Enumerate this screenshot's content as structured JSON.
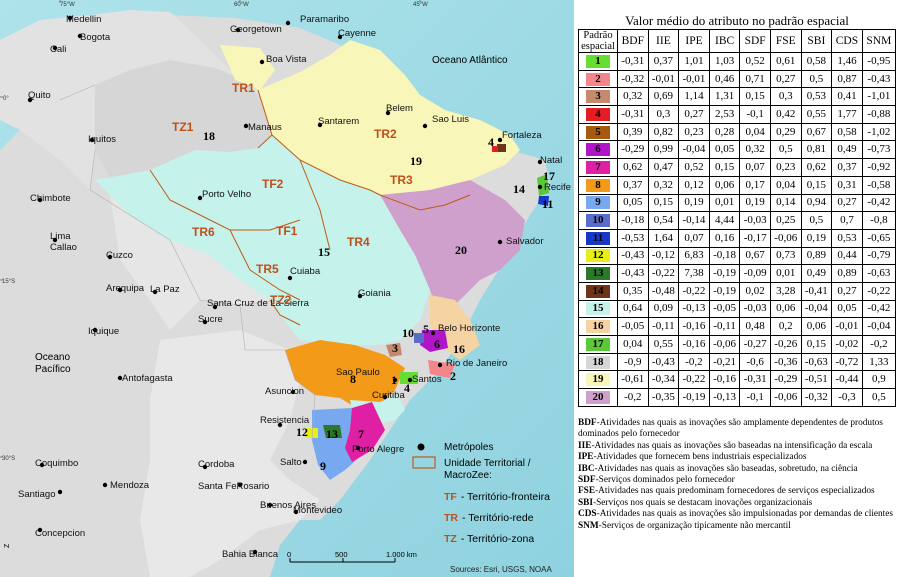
{
  "map": {
    "graticule": {
      "top": [
        "75°W",
        "60°W",
        "45°W"
      ],
      "left": [
        "0°",
        "15°S",
        "30°S"
      ]
    },
    "country_labels": [
      "Oceano Atlântico",
      "Oceano\nPacífico"
    ],
    "cities": [
      "Medellin",
      "Bogota",
      "Cali",
      "Georgetown",
      "Paramaribo",
      "Cayenne",
      "Boa Vista",
      "Quito",
      "Manaus",
      "Iquitos",
      "Santarem",
      "Belem",
      "Sao Luis",
      "Fortaleza",
      "Natal",
      "Recife",
      "Chimbote",
      "Porto Velho",
      "Lima\nCallao",
      "Cuzco",
      "Salvador",
      "Cuiaba",
      "Goiania",
      "Arequipa",
      "La Paz",
      "Santa Cruz de La Sierra",
      "Sucre",
      "Belo Horizonte",
      "Iquique",
      "Rio de Janeiro",
      "Sao Paulo",
      "Santos",
      "Curitiba",
      "Antofagasta",
      "Asuncion",
      "Resistencia",
      "Porto Alegre",
      "Salto",
      "Coquimbo",
      "Cordoba",
      "Mendoza",
      "Santa FeRosario",
      "Santiago",
      "Buenos Aires",
      "Montevideo",
      "Concepcion",
      "Bahia Blanca"
    ],
    "territory_labels": [
      "TR1",
      "TZ1",
      "TR2",
      "TF2",
      "TR3",
      "TR6",
      "TF1",
      "TR4",
      "TR5",
      "TZ2"
    ],
    "pattern_labels": [
      "18",
      "19",
      "4",
      "17",
      "14",
      "11",
      "15",
      "20",
      "10",
      "5",
      "6",
      "16",
      "3",
      "2",
      "8",
      "4",
      "12",
      "13",
      "7",
      "9",
      "1"
    ],
    "legend": {
      "metro_label": "Metrópoles",
      "unit_label": "Unidade Territorial /\nMacroZee:",
      "tf_code": "TF",
      "tf_text": "- Território-fronteira",
      "tr_code": "TR",
      "tr_text": "- Território-rede",
      "tz_code": "TZ",
      "tz_text": "- Território-zona"
    },
    "scalebar": {
      "ticks": [
        "0",
        "500",
        "1.000 km"
      ]
    },
    "north_label": "Z",
    "source": "Sources: Esri, USGS, NOAA"
  },
  "table": {
    "title": "Valor médio do atributo no padrão espacial",
    "pattern_header": "Padrão\nespacial",
    "columns": [
      "BDF",
      "IIE",
      "IPE",
      "IBC",
      "SDF",
      "FSE",
      "SBI",
      "CDS",
      "SNM"
    ],
    "rows": [
      {
        "id": "1",
        "color": "#66dd33",
        "values": [
          "-0,31",
          "0,37",
          "1,01",
          "1,03",
          "0,52",
          "0,61",
          "0,58",
          "1,46",
          "-0,95"
        ]
      },
      {
        "id": "2",
        "color": "#f2868a",
        "values": [
          "-0,32",
          "-0,01",
          "-0,01",
          "0,46",
          "0,71",
          "0,27",
          "0,5",
          "0,87",
          "-0,43"
        ]
      },
      {
        "id": "3",
        "color": "#c58a6e",
        "values": [
          "0,32",
          "0,69",
          "1,14",
          "1,31",
          "0,15",
          "0,3",
          "0,53",
          "0,41",
          "-1,01"
        ]
      },
      {
        "id": "4",
        "color": "#e61c24",
        "values": [
          "-0,31",
          "0,3",
          "0,27",
          "2,53",
          "-0,1",
          "0,42",
          "0,55",
          "1,77",
          "-0,88"
        ]
      },
      {
        "id": "5",
        "color": "#a55a10",
        "values": [
          "0,39",
          "0,82",
          "0,23",
          "0,28",
          "0,04",
          "0,29",
          "0,67",
          "0,58",
          "-1,02"
        ]
      },
      {
        "id": "6",
        "color": "#b016c8",
        "values": [
          "-0,29",
          "0,99",
          "-0,04",
          "0,05",
          "0,32",
          "0,5",
          "0,81",
          "0,49",
          "-0,73"
        ]
      },
      {
        "id": "7",
        "color": "#e020a4",
        "values": [
          "0,62",
          "0,47",
          "0,52",
          "0,15",
          "0,07",
          "0,23",
          "0,62",
          "0,37",
          "-0,92"
        ]
      },
      {
        "id": "8",
        "color": "#f39a18",
        "values": [
          "0,37",
          "0,32",
          "0,12",
          "0,06",
          "0,17",
          "0,04",
          "0,15",
          "0,31",
          "-0,58"
        ]
      },
      {
        "id": "9",
        "color": "#78a8f0",
        "values": [
          "0,05",
          "0,15",
          "0,19",
          "0,01",
          "0,19",
          "0,14",
          "0,94",
          "0,27",
          "-0,42"
        ]
      },
      {
        "id": "10",
        "color": "#5a6ccc",
        "values": [
          "-0,18",
          "0,54",
          "-0,14",
          "4,44",
          "-0,03",
          "0,25",
          "0,5",
          "0,7",
          "-0,8"
        ]
      },
      {
        "id": "11",
        "color": "#1638c8",
        "values": [
          "-0,53",
          "1,64",
          "0,07",
          "0,16",
          "-0,17",
          "-0,06",
          "0,19",
          "0,53",
          "-0,65"
        ]
      },
      {
        "id": "12",
        "color": "#e8ef18",
        "values": [
          "-0,43",
          "-0,12",
          "6,83",
          "-0,18",
          "0,67",
          "0,73",
          "0,89",
          "0,44",
          "-0,79"
        ]
      },
      {
        "id": "13",
        "color": "#2a7a2a",
        "values": [
          "-0,43",
          "-0,22",
          "7,38",
          "-0,19",
          "-0,09",
          "0,01",
          "0,49",
          "0,89",
          "-0,63"
        ]
      },
      {
        "id": "14",
        "color": "#6e3418",
        "values": [
          "0,35",
          "-0,48",
          "-0,22",
          "-0,19",
          "0,02",
          "3,28",
          "-0,41",
          "0,27",
          "-0,22"
        ]
      },
      {
        "id": "15",
        "color": "#c6f2ec",
        "values": [
          "0,64",
          "0,09",
          "-0,13",
          "-0,05",
          "-0,03",
          "0,06",
          "-0,04",
          "0,05",
          "-0,42"
        ]
      },
      {
        "id": "16",
        "color": "#f6d3a2",
        "values": [
          "-0,05",
          "-0,11",
          "-0,16",
          "-0,11",
          "0,48",
          "0,2",
          "0,06",
          "-0,01",
          "-0,04"
        ]
      },
      {
        "id": "17",
        "color": "#5ac83a",
        "values": [
          "0,04",
          "0,55",
          "-0,16",
          "-0,06",
          "-0,27",
          "-0,26",
          "0,15",
          "-0,02",
          "-0,2"
        ]
      },
      {
        "id": "18",
        "color": "#d6d6d6",
        "values": [
          "-0,9",
          "-0,43",
          "-0,2",
          "-0,21",
          "-0,6",
          "-0,36",
          "-0,63",
          "-0,72",
          "1,33"
        ]
      },
      {
        "id": "19",
        "color": "#f8f6b8",
        "values": [
          "-0,61",
          "-0,34",
          "-0,22",
          "-0,16",
          "-0,31",
          "-0,29",
          "-0,51",
          "-0,44",
          "0,9"
        ]
      },
      {
        "id": "20",
        "color": "#cfa0cc",
        "values": [
          "-0,2",
          "-0,35",
          "-0,19",
          "-0,13",
          "-0,1",
          "-0,06",
          "-0,32",
          "-0,3",
          "0,5"
        ]
      }
    ]
  },
  "definitions": [
    {
      "code": "BDF",
      "text": "-Atividades nas quais as inovações são amplamente dependentes de produtos"
    },
    {
      "code": "",
      "text": "dominados pelo fornecedor"
    },
    {
      "code": "IIE",
      "text": "-Atividades nas quais as inovações são baseadas na intensificação da escala"
    },
    {
      "code": "IPE",
      "text": "-Atividades que fornecem bens industriais especializados"
    },
    {
      "code": "IBC",
      "text": "-Atividades nas quais as inovações são baseadas, sobretudo, na ciência"
    },
    {
      "code": "SDF",
      "text": "-Serviços dominados pelo fornecedor"
    },
    {
      "code": "FSE",
      "text": "-Atividades nas quais predominam fornecedores de serviços especializados"
    },
    {
      "code": "SBI",
      "text": "-Serviços nos quais se destacam inovações organizacionais"
    },
    {
      "code": "CDS",
      "text": "-Atividades nas quais as inovações são impulsionadas por demandas de clientes"
    },
    {
      "code": "SNM",
      "text": "-Serviços de organização tipicamente não mercantil"
    }
  ]
}
